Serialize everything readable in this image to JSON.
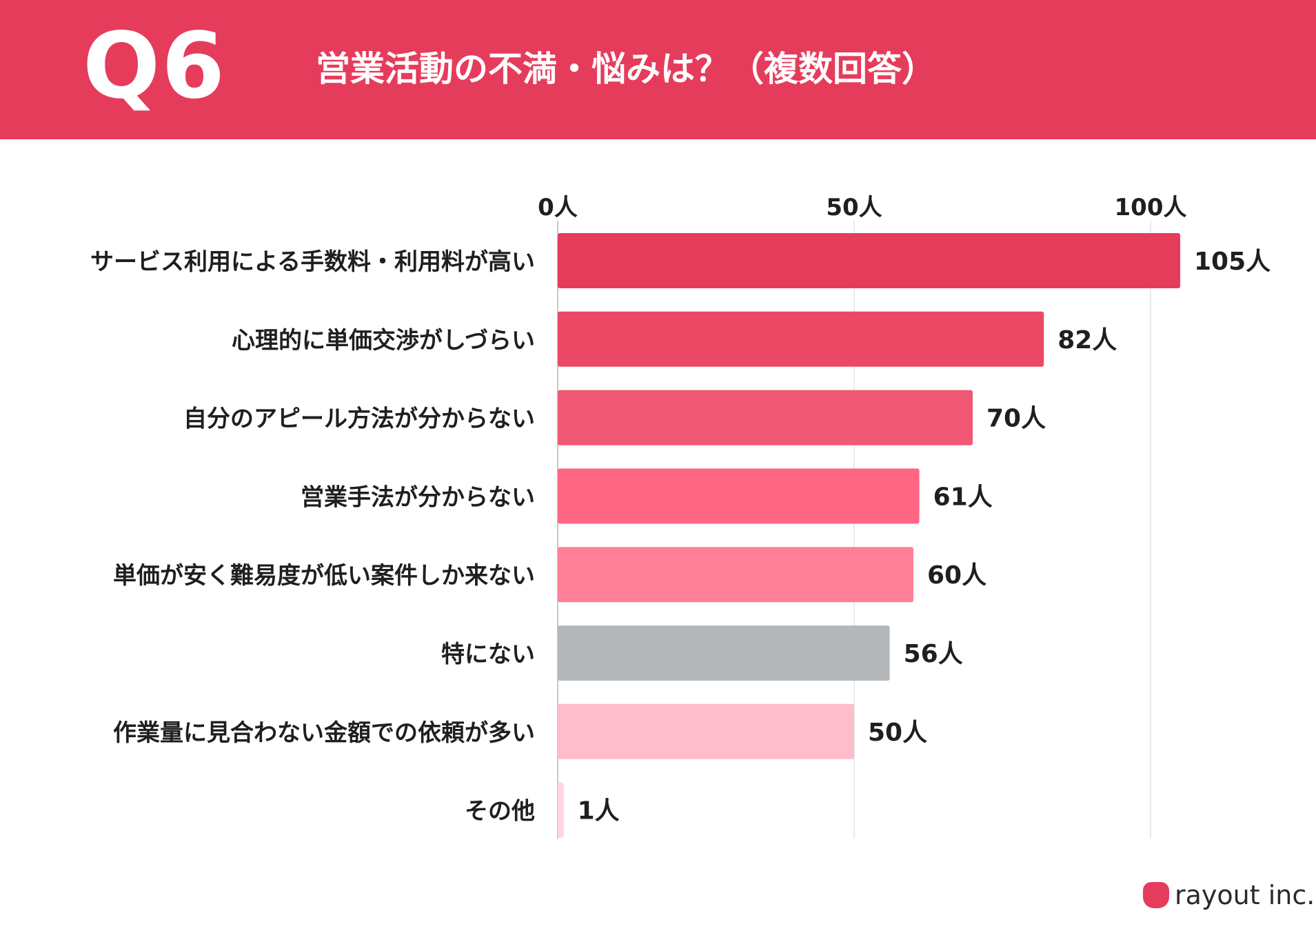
{
  "header": {
    "question_number": "Q6",
    "title": "営業活動の不満・悩みは？（複数回答）"
  },
  "chart_data": {
    "type": "bar",
    "orientation": "horizontal",
    "categories": [
      "サービス利用による手数料・利用料が高い",
      "心理的に単価交渉がしづらい",
      "自分のアピール方法が分からない",
      "営業手法が分からない",
      "単価が安く難易度が低い案件しか来ない",
      "特にない",
      "作業量に見合わない金額での依頼が多い",
      "その他"
    ],
    "values": [
      105,
      82,
      70,
      61,
      60,
      56,
      50,
      1
    ],
    "value_labels": [
      "105人",
      "82人",
      "70人",
      "61人",
      "60人",
      "56人",
      "50人",
      "1人"
    ],
    "bar_colors": [
      "#e63c5c",
      "#eb4965",
      "#f15874",
      "#ff6683",
      "#ff8097",
      "#b4b8ba",
      "#ffbccb",
      "#ffd5de"
    ],
    "x_ticks": [
      0,
      50,
      100
    ],
    "x_tick_labels": [
      "0人",
      "50人",
      "100人"
    ],
    "xlim": [
      0,
      110
    ],
    "grid": true,
    "title": "営業活動の不満・悩みは？（複数回答）"
  },
  "brand": {
    "name": "rayout inc.",
    "logo_icon": "apple-shaped-logo-icon",
    "color": "#e63c5c"
  }
}
